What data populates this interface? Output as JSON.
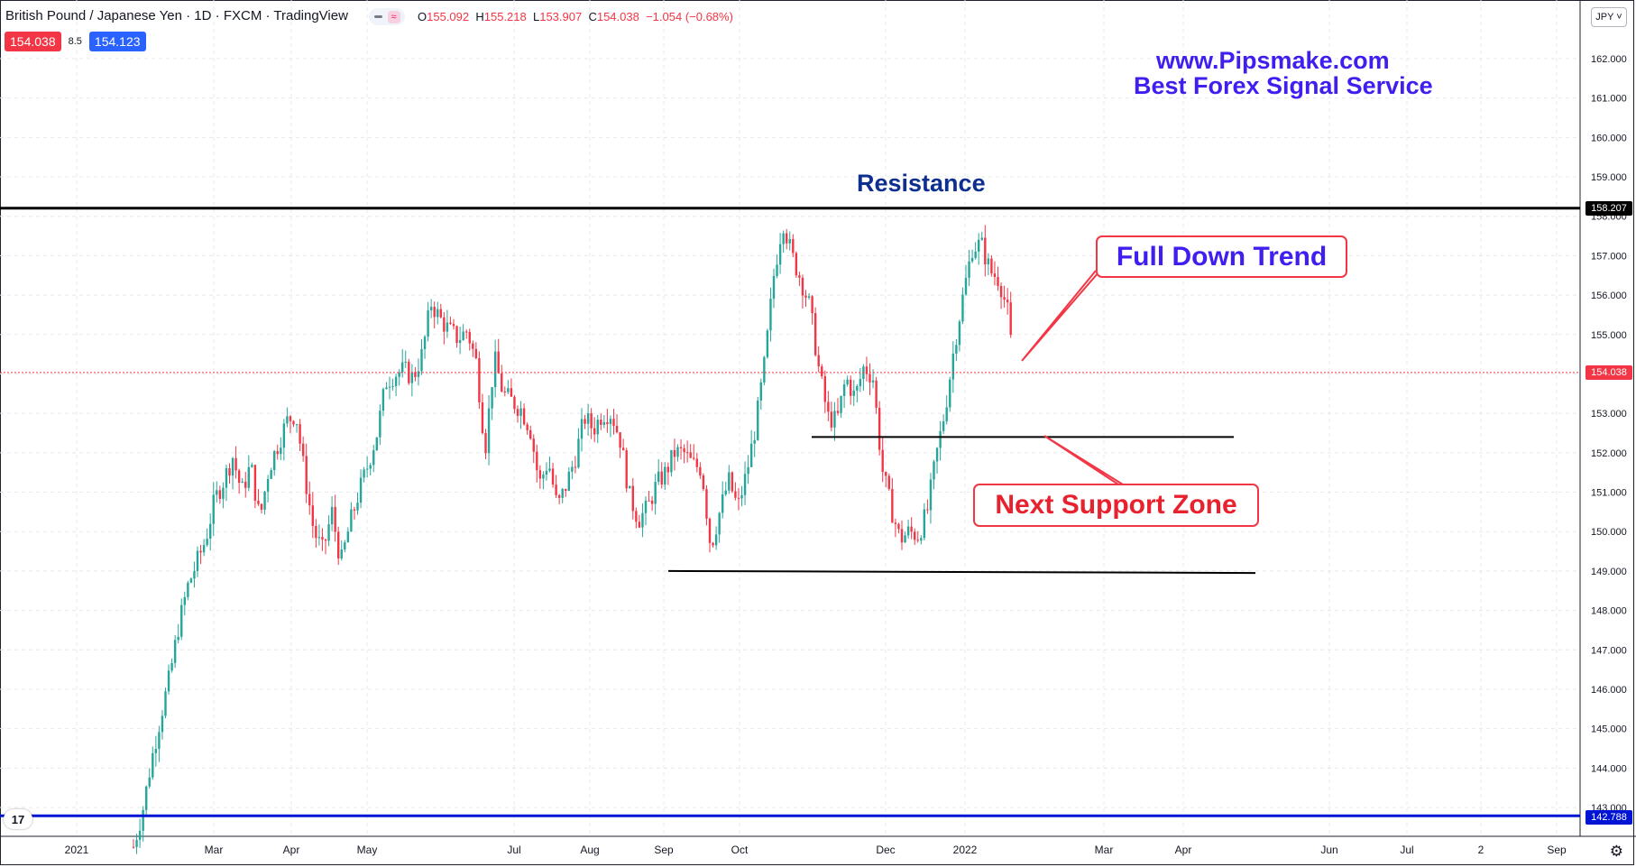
{
  "header": {
    "title": "British Pound / Japanese Yen · 1D · FXCM · TradingView",
    "ohlc": {
      "o_label": "O",
      "o": "155.092",
      "h_label": "H",
      "h": "155.218",
      "l_label": "L",
      "l": "153.907",
      "c_label": "C",
      "c": "154.038",
      "change": "−1.054 (−0.68%)"
    },
    "bid": "154.038",
    "spread": "8.5",
    "ask": "154.123",
    "currency_button": "JPY ˅",
    "wave_icon": "≈"
  },
  "watermark": {
    "line1": "www.Pipsmake.com",
    "line2": "Best Forex Signal Service"
  },
  "annotations": {
    "resistance": "Resistance",
    "trend": "Full Down Trend",
    "support": "Next Support Zone"
  },
  "price_tags": {
    "resistance": "158.207",
    "current": "154.038",
    "support": "142.788"
  },
  "logo_text": "17",
  "colors": {
    "up": "#26a69a",
    "down": "#f23645",
    "accent": "#2962ff",
    "watermark": "#3f1ef0",
    "resistance_text": "#0d2f8f"
  },
  "icons": [
    "tradingview-logo-icon",
    "gear-icon",
    "chevron-down-icon",
    "wave-icon"
  ],
  "chart_data": {
    "type": "candlestick",
    "symbol": "GBPJPY",
    "ylim": [
      142.5,
      162.8
    ],
    "yticks": [
      "143.000",
      "144.000",
      "145.000",
      "146.000",
      "147.000",
      "148.000",
      "149.000",
      "150.000",
      "151.000",
      "152.000",
      "153.000",
      "154.000",
      "155.000",
      "156.000",
      "157.000",
      "158.000",
      "159.000",
      "160.000",
      "161.000",
      "162.000"
    ],
    "xticks": [
      {
        "label": "2021",
        "x": 85
      },
      {
        "label": "Mar",
        "x": 237
      },
      {
        "label": "Apr",
        "x": 323
      },
      {
        "label": "May",
        "x": 407
      },
      {
        "label": "Jul",
        "x": 570
      },
      {
        "label": "Aug",
        "x": 654
      },
      {
        "label": "Sep",
        "x": 736
      },
      {
        "label": "Oct",
        "x": 820
      },
      {
        "label": "Dec",
        "x": 982
      },
      {
        "label": "2022",
        "x": 1070
      },
      {
        "label": "Mar",
        "x": 1224
      },
      {
        "label": "Apr",
        "x": 1312
      },
      {
        "label": "Jun",
        "x": 1474
      },
      {
        "label": "Jul",
        "x": 1560
      },
      {
        "label": "2",
        "x": 1642
      },
      {
        "label": "Sep",
        "x": 1726
      }
    ],
    "price_path": [
      [
        148,
        142.0
      ],
      [
        158,
        142.9
      ],
      [
        168,
        144.2
      ],
      [
        178,
        145.3
      ],
      [
        188,
        146.3
      ],
      [
        198,
        147.6
      ],
      [
        208,
        148.6
      ],
      [
        218,
        149.2
      ],
      [
        228,
        149.8
      ],
      [
        238,
        150.8
      ],
      [
        248,
        151.3
      ],
      [
        258,
        151.9
      ],
      [
        268,
        151.0
      ],
      [
        278,
        151.7
      ],
      [
        288,
        150.3
      ],
      [
        298,
        151.6
      ],
      [
        308,
        152.2
      ],
      [
        318,
        152.8
      ],
      [
        328,
        153.0
      ],
      [
        338,
        151.4
      ],
      [
        348,
        150.0
      ],
      [
        358,
        149.5
      ],
      [
        368,
        150.5
      ],
      [
        378,
        149.2
      ],
      [
        388,
        150.2
      ],
      [
        398,
        151.0
      ],
      [
        408,
        151.7
      ],
      [
        418,
        152.5
      ],
      [
        428,
        153.8
      ],
      [
        438,
        154.0
      ],
      [
        448,
        154.1
      ],
      [
        458,
        153.9
      ],
      [
        468,
        154.5
      ],
      [
        478,
        155.8
      ],
      [
        488,
        155.4
      ],
      [
        498,
        155.1
      ],
      [
        508,
        154.9
      ],
      [
        518,
        155.1
      ],
      [
        528,
        154.3
      ],
      [
        538,
        152.1
      ],
      [
        548,
        154.4
      ],
      [
        558,
        153.5
      ],
      [
        568,
        153.3
      ],
      [
        578,
        153.1
      ],
      [
        588,
        152.6
      ],
      [
        598,
        151.2
      ],
      [
        608,
        151.8
      ],
      [
        618,
        150.6
      ],
      [
        628,
        151.2
      ],
      [
        638,
        151.9
      ],
      [
        648,
        152.9
      ],
      [
        658,
        152.6
      ],
      [
        668,
        153.0
      ],
      [
        678,
        153.0
      ],
      [
        688,
        152.3
      ],
      [
        698,
        150.9
      ],
      [
        708,
        150.3
      ],
      [
        718,
        150.6
      ],
      [
        728,
        151.2
      ],
      [
        738,
        151.5
      ],
      [
        748,
        152.0
      ],
      [
        758,
        152.0
      ],
      [
        768,
        151.7
      ],
      [
        778,
        151.6
      ],
      [
        788,
        149.6
      ],
      [
        798,
        150.5
      ],
      [
        808,
        151.3
      ],
      [
        818,
        150.6
      ],
      [
        828,
        151.5
      ],
      [
        838,
        152.7
      ],
      [
        848,
        154.3
      ],
      [
        858,
        156.5
      ],
      [
        868,
        157.9
      ],
      [
        878,
        157.0
      ],
      [
        888,
        156.4
      ],
      [
        898,
        155.7
      ],
      [
        908,
        154.1
      ],
      [
        918,
        152.9
      ],
      [
        928,
        152.8
      ],
      [
        938,
        153.9
      ],
      [
        948,
        153.4
      ],
      [
        958,
        154.2
      ],
      [
        968,
        153.9
      ],
      [
        978,
        151.6
      ],
      [
        988,
        150.6
      ],
      [
        998,
        149.8
      ],
      [
        1008,
        150.0
      ],
      [
        1018,
        149.9
      ],
      [
        1028,
        150.5
      ],
      [
        1038,
        151.9
      ],
      [
        1048,
        153.1
      ],
      [
        1058,
        154.7
      ],
      [
        1068,
        156.0
      ],
      [
        1078,
        157.2
      ],
      [
        1088,
        157.3
      ],
      [
        1098,
        156.6
      ],
      [
        1108,
        156.4
      ],
      [
        1118,
        155.5
      ],
      [
        1124,
        154.0
      ]
    ],
    "lines": [
      {
        "name": "resistance",
        "price": 158.207,
        "x1": 0,
        "x2": 1752,
        "color": "#000000"
      },
      {
        "name": "support-upper",
        "price": 152.4,
        "x1": 900,
        "x2": 1368,
        "color": "#000000"
      },
      {
        "name": "support-lower",
        "price": 149.0,
        "x1": 741,
        "x2": 1392,
        "color": "#000000",
        "price_end": 148.95
      },
      {
        "name": "major-support",
        "price": 142.788,
        "x1": 0,
        "x2": 1752,
        "color": "#0014d6"
      },
      {
        "name": "current-price",
        "price": 154.038,
        "x1": 0,
        "x2": 1752,
        "color": "#f23645",
        "dotted": true
      }
    ]
  }
}
